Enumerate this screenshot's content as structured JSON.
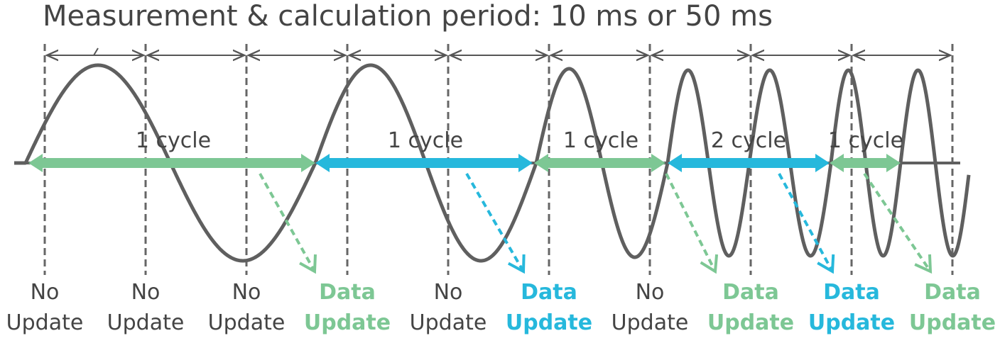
{
  "title": "Measurement & calculation period: 10 ms or 50 ms",
  "colors": {
    "wave": "#5f5f5f",
    "dashed": "#666666",
    "green": "#7dc794",
    "blue": "#26b8dc",
    "text": "#444444"
  },
  "cycle_labels": [
    {
      "text": "1 cycle",
      "color": "green"
    },
    {
      "text": "1 cycle",
      "color": "blue"
    },
    {
      "text": "1 cycle",
      "color": "green"
    },
    {
      "text": "2 cycle",
      "color": "blue"
    },
    {
      "text": "1 cycle",
      "color": "green"
    }
  ],
  "period_labels": [
    {
      "line1": "No",
      "line2": "Update",
      "kind": "none"
    },
    {
      "line1": "No",
      "line2": "Update",
      "kind": "none"
    },
    {
      "line1": "No",
      "line2": "Update",
      "kind": "none"
    },
    {
      "line1": "Data",
      "line2": "Update",
      "kind": "green"
    },
    {
      "line1": "No",
      "line2": "Update",
      "kind": "none"
    },
    {
      "line1": "Data",
      "line2": "Update",
      "kind": "blue"
    },
    {
      "line1": "No",
      "line2": "Update",
      "kind": "none"
    },
    {
      "line1": "Data",
      "line2": "Update",
      "kind": "green"
    },
    {
      "line1": "Data",
      "line2": "Update",
      "kind": "blue"
    },
    {
      "line1": "Data",
      "line2": "Update",
      "kind": "green"
    }
  ]
}
